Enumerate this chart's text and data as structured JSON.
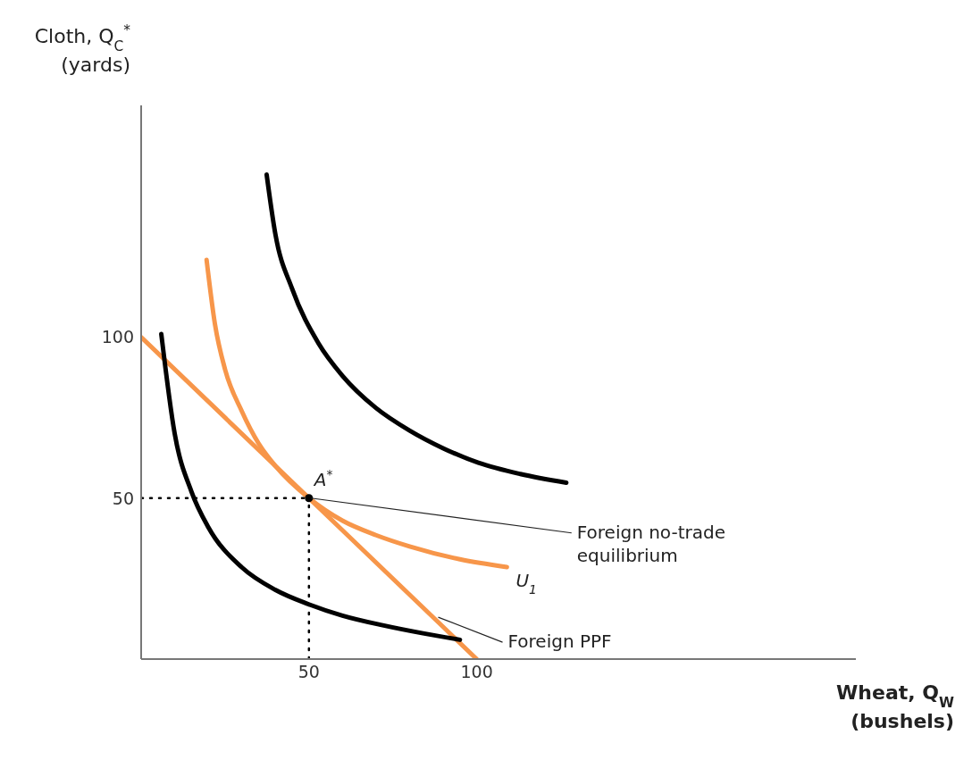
{
  "chart_data": {
    "type": "line",
    "xlabel": "Wheat, Q$_{W}$\n(bushels)",
    "ylabel": "Cloth, Q$_{C}$$^{*}$\n(yards)",
    "xlim": [
      0,
      213
    ],
    "ylim": [
      0,
      172
    ],
    "xticks": [
      50,
      100
    ],
    "yticks": [
      50,
      100
    ],
    "marker": "none",
    "series": [
      {
        "color": "#000000",
        "x": [
          37.4,
          40,
          45,
          52.9,
          60,
          70,
          80,
          90,
          100.5,
          113,
          126.7
        ],
        "values": [
          150.5,
          132,
          115,
          98,
          88,
          78,
          71,
          65.5,
          61,
          57.5,
          54.8
        ]
      },
      {
        "color": "#f7964a",
        "x": [
          19.5,
          22,
          25,
          30,
          35,
          40,
          50,
          60,
          70,
          80,
          95,
          109
        ],
        "values": [
          124,
          104,
          90,
          77,
          67,
          60,
          50,
          43,
          38.5,
          35,
          31,
          28.6
        ]
      },
      {
        "color": "#f7964a",
        "x": [
          0,
          100
        ],
        "values": [
          100,
          0
        ]
      },
      {
        "color": "#000000",
        "x": [
          6,
          10,
          15,
          20,
          30,
          40,
          50,
          60,
          72,
          84,
          95
        ],
        "values": [
          101,
          70,
          52,
          41,
          28.5,
          21.5,
          17,
          13.5,
          10.5,
          8,
          6
        ]
      },
      {
        "color": "#000000",
        "line_style": "dotted",
        "x": [
          0,
          50
        ],
        "values": [
          50,
          50
        ]
      },
      {
        "color": "#000000",
        "line_style": "dotted",
        "x": [
          50,
          50
        ],
        "values": [
          0,
          50
        ]
      },
      {
        "type": "scatter",
        "marker": "circle",
        "color": "#000000",
        "x": [
          50
        ],
        "values": [
          50
        ]
      }
    ],
    "annotations": [
      {
        "text": "A$^{*}$",
        "x": 50,
        "y": 50
      },
      {
        "text": "U$_{1}$",
        "x": 109,
        "y": 28.6
      },
      {
        "text": "Foreign no-trade equilibrium",
        "x": 50,
        "y": 50
      },
      {
        "text": "Foreign PPF",
        "x": 88,
        "y": 13
      }
    ]
  }
}
